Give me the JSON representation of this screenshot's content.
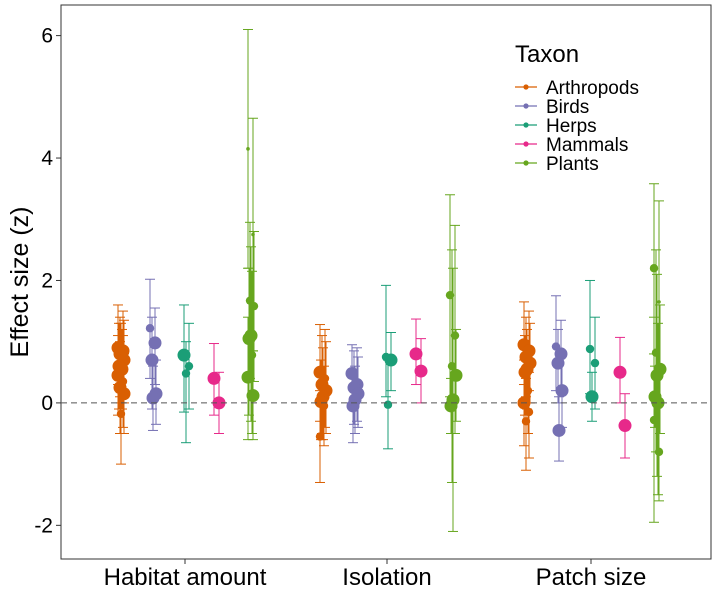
{
  "chart_data": {
    "type": "scatter",
    "ylabel": "Effect size (z)",
    "xlabel": "",
    "ylim": [
      -2.55,
      6.5
    ],
    "yticks": [
      -2,
      0,
      2,
      4,
      6
    ],
    "reference_line_y": 0,
    "grid": false,
    "categories": [
      "Habitat amount",
      "Isolation",
      "Patch size"
    ],
    "legend": {
      "title": "Taxon",
      "position": "top-right"
    },
    "series": [
      {
        "name": "Arthropods",
        "color": "#D95F02",
        "groups": [
          {
            "category": "Habitat amount",
            "points": [
              {
                "y": 0.9,
                "lo": 0.3,
                "hi": 1.6,
                "size": 3
              },
              {
                "y": 0.85,
                "lo": 0.2,
                "hi": 1.5,
                "size": 3
              },
              {
                "y": 0.8,
                "lo": 0.1,
                "hi": 1.4,
                "size": 3
              },
              {
                "y": 0.7,
                "lo": 0.0,
                "hi": 1.35,
                "size": 3
              },
              {
                "y": 0.65,
                "lo": 0.0,
                "hi": 1.3,
                "size": 2
              },
              {
                "y": 0.6,
                "lo": -0.1,
                "hi": 1.3,
                "size": 3
              },
              {
                "y": 0.55,
                "lo": -0.1,
                "hi": 1.2,
                "size": 3
              },
              {
                "y": 0.45,
                "lo": -0.2,
                "hi": 1.1,
                "size": 3
              },
              {
                "y": 0.35,
                "lo": -0.4,
                "hi": 1.1,
                "size": 2
              },
              {
                "y": 0.25,
                "lo": -0.5,
                "hi": 1.0,
                "size": 3
              },
              {
                "y": 0.15,
                "lo": -0.5,
                "hi": 0.8,
                "size": 3
              },
              {
                "y": -0.18,
                "lo": -1.0,
                "hi": 0.6,
                "size": 2
              }
            ]
          },
          {
            "category": "Isolation",
            "points": [
              {
                "y": 0.5,
                "lo": -0.3,
                "hi": 1.28,
                "size": 3
              },
              {
                "y": 0.4,
                "lo": -0.4,
                "hi": 1.2,
                "size": 2
              },
              {
                "y": 0.3,
                "lo": -0.5,
                "hi": 1.1,
                "size": 3
              },
              {
                "y": 0.2,
                "lo": -0.5,
                "hi": 1.0,
                "size": 3
              },
              {
                "y": 0.1,
                "lo": -0.6,
                "hi": 0.9,
                "size": 3
              },
              {
                "y": 0.02,
                "lo": -0.6,
                "hi": 0.7,
                "size": 3
              },
              {
                "y": -0.05,
                "lo": -0.7,
                "hi": 0.6,
                "size": 2
              },
              {
                "y": -0.55,
                "lo": -1.3,
                "hi": 0.2,
                "size": 2
              }
            ]
          },
          {
            "category": "Patch size",
            "points": [
              {
                "y": 0.95,
                "lo": 0.3,
                "hi": 1.65,
                "size": 3
              },
              {
                "y": 0.85,
                "lo": 0.2,
                "hi": 1.5,
                "size": 3
              },
              {
                "y": 0.75,
                "lo": 0.1,
                "hi": 1.4,
                "size": 3
              },
              {
                "y": 0.65,
                "lo": 0.0,
                "hi": 1.3,
                "size": 3
              },
              {
                "y": 0.55,
                "lo": -0.1,
                "hi": 1.2,
                "size": 3
              },
              {
                "y": 0.5,
                "lo": -0.2,
                "hi": 1.1,
                "size": 3
              },
              {
                "y": 0.2,
                "lo": -0.5,
                "hi": 0.9,
                "size": 2
              },
              {
                "y": 0.0,
                "lo": -0.7,
                "hi": 0.7,
                "size": 3
              },
              {
                "y": -0.15,
                "lo": -0.9,
                "hi": 0.5,
                "size": 2
              },
              {
                "y": -0.3,
                "lo": -1.1,
                "hi": 0.4,
                "size": 2
              }
            ]
          }
        ]
      },
      {
        "name": "Birds",
        "color": "#7570B3",
        "groups": [
          {
            "category": "Habitat amount",
            "points": [
              {
                "y": 1.22,
                "lo": 0.4,
                "hi": 2.02,
                "size": 2
              },
              {
                "y": 0.98,
                "lo": 0.3,
                "hi": 1.55,
                "size": 3
              },
              {
                "y": 0.7,
                "lo": -0.1,
                "hi": 1.4,
                "size": 3
              },
              {
                "y": 0.15,
                "lo": -0.35,
                "hi": 0.7,
                "size": 3
              },
              {
                "y": 0.08,
                "lo": -0.45,
                "hi": 0.6,
                "size": 3
              }
            ]
          },
          {
            "category": "Isolation",
            "points": [
              {
                "y": 0.48,
                "lo": 0.0,
                "hi": 0.95,
                "size": 3
              },
              {
                "y": 0.3,
                "lo": -0.3,
                "hi": 0.9,
                "size": 3
              },
              {
                "y": 0.25,
                "lo": -0.35,
                "hi": 0.85,
                "size": 3
              },
              {
                "y": 0.15,
                "lo": -0.4,
                "hi": 0.75,
                "size": 3
              },
              {
                "y": 0.05,
                "lo": -0.5,
                "hi": 0.6,
                "size": 3
              },
              {
                "y": -0.05,
                "lo": -0.65,
                "hi": 0.5,
                "size": 3
              }
            ]
          },
          {
            "category": "Patch size",
            "points": [
              {
                "y": 0.92,
                "lo": 0.2,
                "hi": 1.75,
                "size": 2
              },
              {
                "y": 0.8,
                "lo": 0.2,
                "hi": 1.35,
                "size": 3
              },
              {
                "y": 0.65,
                "lo": 0.0,
                "hi": 1.2,
                "size": 3
              },
              {
                "y": 0.2,
                "lo": -0.4,
                "hi": 0.8,
                "size": 3
              },
              {
                "y": -0.45,
                "lo": -0.95,
                "hi": 0.1,
                "size": 3
              }
            ]
          }
        ]
      },
      {
        "name": "Herps",
        "color": "#1B9E77",
        "groups": [
          {
            "category": "Habitat amount",
            "points": [
              {
                "y": 0.78,
                "lo": -0.15,
                "hi": 1.6,
                "size": 3
              },
              {
                "y": 0.6,
                "lo": -0.1,
                "hi": 1.3,
                "size": 2
              },
              {
                "y": 0.48,
                "lo": -0.65,
                "hi": 1.0,
                "size": 2
              }
            ]
          },
          {
            "category": "Isolation",
            "points": [
              {
                "y": 0.75,
                "lo": 0.1,
                "hi": 1.92,
                "size": 2
              },
              {
                "y": 0.7,
                "lo": 0.2,
                "hi": 1.15,
                "size": 3
              },
              {
                "y": -0.03,
                "lo": -0.75,
                "hi": 0.7,
                "size": 2
              }
            ]
          },
          {
            "category": "Patch size",
            "points": [
              {
                "y": 0.88,
                "lo": 0.15,
                "hi": 2.0,
                "size": 2
              },
              {
                "y": 0.65,
                "lo": -0.1,
                "hi": 1.4,
                "size": 2
              },
              {
                "y": 0.1,
                "lo": -0.3,
                "hi": 0.5,
                "size": 3
              }
            ]
          }
        ]
      },
      {
        "name": "Mammals",
        "color": "#E7298A",
        "groups": [
          {
            "category": "Habitat amount",
            "points": [
              {
                "y": 0.4,
                "lo": -0.2,
                "hi": 0.97,
                "size": 3
              },
              {
                "y": 0.0,
                "lo": -0.5,
                "hi": 0.5,
                "size": 3
              }
            ]
          },
          {
            "category": "Isolation",
            "points": [
              {
                "y": 0.8,
                "lo": 0.3,
                "hi": 1.37,
                "size": 3
              },
              {
                "y": 0.52,
                "lo": 0.0,
                "hi": 1.05,
                "size": 3
              }
            ]
          },
          {
            "category": "Patch size",
            "points": [
              {
                "y": 0.5,
                "lo": 0.0,
                "hi": 1.07,
                "size": 3
              },
              {
                "y": -0.37,
                "lo": -0.9,
                "hi": 0.15,
                "size": 3
              }
            ]
          }
        ]
      },
      {
        "name": "Plants",
        "color": "#66A61E",
        "groups": [
          {
            "category": "Habitat amount",
            "points": [
              {
                "y": 4.15,
                "lo": 2.2,
                "hi": 6.1,
                "size": 1
              },
              {
                "y": 2.75,
                "lo": 0.85,
                "hi": 4.65,
                "size": 1
              },
              {
                "y": 1.67,
                "lo": 0.4,
                "hi": 2.95,
                "size": 2
              },
              {
                "y": 1.58,
                "lo": 0.35,
                "hi": 2.8,
                "size": 2
              },
              {
                "y": 1.1,
                "lo": -0.3,
                "hi": 2.55,
                "size": 3
              },
              {
                "y": 1.05,
                "lo": -0.2,
                "hi": 2.2,
                "size": 3
              },
              {
                "y": 0.78,
                "lo": -0.5,
                "hi": 2.15,
                "size": 2
              },
              {
                "y": 0.42,
                "lo": -0.6,
                "hi": 1.4,
                "size": 3
              },
              {
                "y": 0.12,
                "lo": -0.6,
                "hi": 0.85,
                "size": 3
              }
            ]
          },
          {
            "category": "Isolation",
            "points": [
              {
                "y": 1.76,
                "lo": 0.1,
                "hi": 3.4,
                "size": 2
              },
              {
                "y": 1.1,
                "lo": -0.5,
                "hi": 2.9,
                "size": 2
              },
              {
                "y": 0.6,
                "lo": -1.3,
                "hi": 2.5,
                "size": 2
              },
              {
                "y": 0.45,
                "lo": -0.3,
                "hi": 1.2,
                "size": 3
              },
              {
                "y": 0.05,
                "lo": -2.1,
                "hi": 2.2,
                "size": 3
              },
              {
                "y": -0.05,
                "lo": -0.5,
                "hi": 0.4,
                "size": 3
              }
            ]
          },
          {
            "category": "Patch size",
            "points": [
              {
                "y": 2.2,
                "lo": 0.8,
                "hi": 3.58,
                "size": 2
              },
              {
                "y": 1.65,
                "lo": 0.0,
                "hi": 3.3,
                "size": 1
              },
              {
                "y": 0.82,
                "lo": -0.8,
                "hi": 2.5,
                "size": 2
              },
              {
                "y": 0.55,
                "lo": -0.5,
                "hi": 1.6,
                "size": 3
              },
              {
                "y": 0.45,
                "lo": -1.2,
                "hi": 2.1,
                "size": 3
              },
              {
                "y": 0.1,
                "lo": -0.4,
                "hi": 0.6,
                "size": 3
              },
              {
                "y": 0.0,
                "lo": -1.5,
                "hi": 1.3,
                "size": 3
              },
              {
                "y": -0.28,
                "lo": -1.95,
                "hi": 1.4,
                "size": 2
              },
              {
                "y": -0.8,
                "lo": -1.6,
                "hi": 0.0,
                "size": 2
              }
            ]
          }
        ]
      }
    ]
  }
}
